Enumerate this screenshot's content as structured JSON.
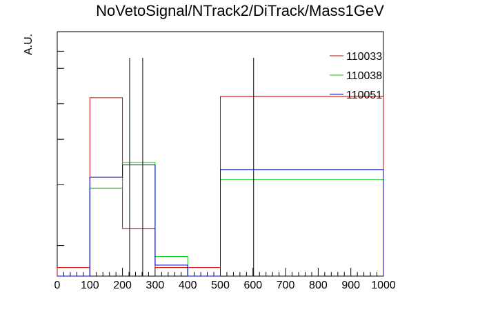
{
  "chart_data": {
    "type": "histogram",
    "title": "NoVetoSignal/NTrack2/DiTrack/Mass1GeV",
    "xlabel": "",
    "ylabel": "A.U.",
    "xlim": [
      0,
      1000
    ],
    "ylim": [
      0,
      1.0
    ],
    "x_ticks": [
      "0",
      "100",
      "200",
      "300",
      "400",
      "500",
      "600",
      "700",
      "800",
      "900",
      "1000"
    ],
    "grid": false,
    "legend_position": "top-right",
    "bin_edges": [
      0,
      100,
      200,
      300,
      400,
      500,
      1000
    ],
    "series": [
      {
        "name": "110033",
        "color": "#cc0000",
        "values": [
          0.035,
          0.73,
          0.195,
          0.035,
          0.035,
          0.735
        ]
      },
      {
        "name": "110038",
        "color": "#00cc00",
        "values": [
          0.0,
          0.36,
          0.465,
          0.08,
          0.0,
          0.395
        ]
      },
      {
        "name": "110051",
        "color": "#0000cc",
        "values": [
          0.0,
          0.405,
          0.455,
          0.045,
          0.0,
          0.435
        ]
      }
    ],
    "vertical_lines": [
      222,
      262,
      602
    ]
  }
}
